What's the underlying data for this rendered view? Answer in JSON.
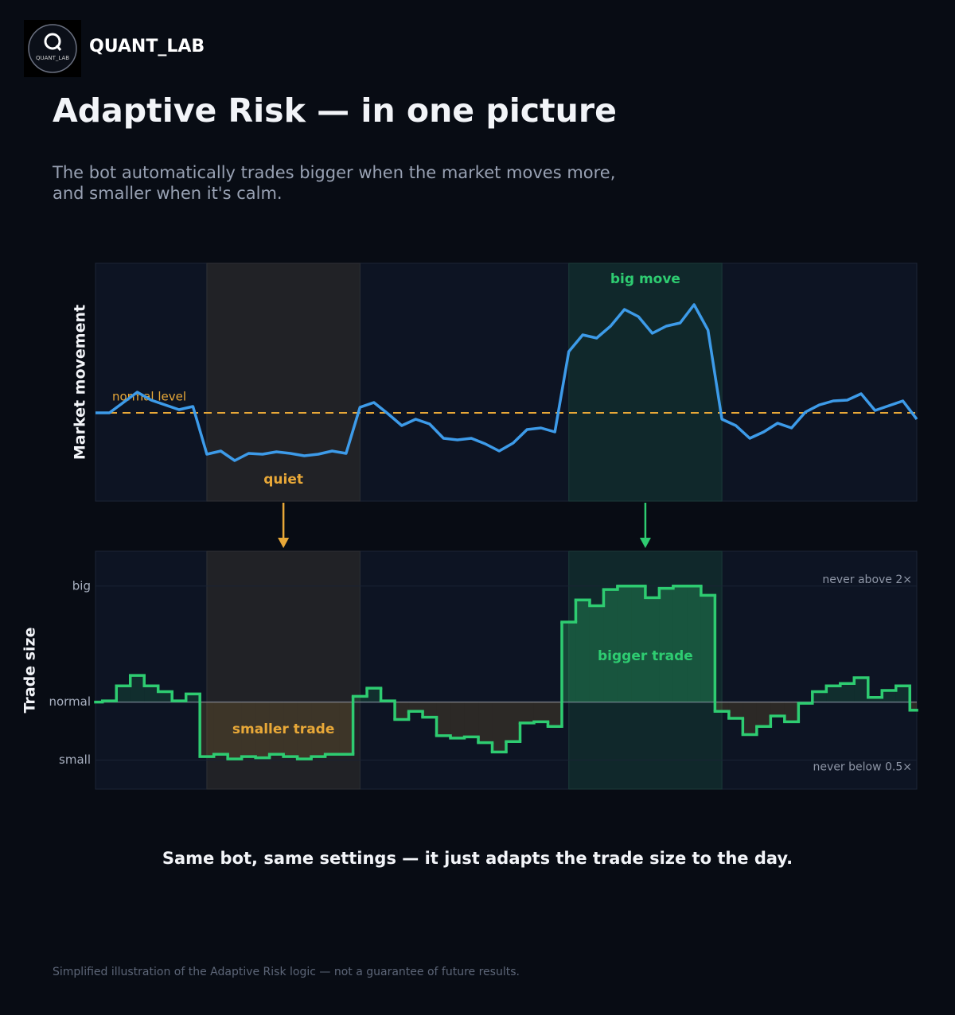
{
  "brand": "QUANT_LAB",
  "logo_label": "QUANT_LAB",
  "title": "Adaptive Risk — in one picture",
  "subtitle": [
    "The bot automatically trades bigger when the market moves more,",
    "and smaller when it's calm."
  ],
  "chart_data": [
    {
      "type": "line",
      "ylabel": "Market movement",
      "color": "#3d9be9",
      "values": [
        111,
        111,
        124,
        137,
        127,
        121,
        115,
        119,
        59,
        63,
        51,
        60,
        59,
        62,
        60,
        57,
        59,
        63,
        60,
        118,
        124,
        110,
        95,
        103,
        97,
        79,
        77,
        79,
        72,
        63,
        73,
        90,
        92,
        87,
        188,
        209,
        205,
        220,
        241,
        232,
        211,
        220,
        224,
        247,
        215,
        103,
        95,
        79,
        87,
        98,
        92,
        112,
        121,
        126,
        127,
        135,
        114,
        120,
        126,
        103
      ],
      "ylim": [
        0,
        299
      ],
      "reference": {
        "value": 111,
        "label": "normal level",
        "color": "#e8a838"
      },
      "regions": [
        {
          "label": "quiet",
          "start": 8,
          "end": 19,
          "color": "#e8a838"
        },
        {
          "label": "big move",
          "start": 34,
          "end": 45,
          "color": "#2ecc71"
        }
      ]
    },
    {
      "type": "step",
      "ylabel": "Trade size",
      "color": "#2ecc71",
      "below_color": "#e8a838",
      "values": [
        1.0,
        1.01,
        1.14,
        1.23,
        1.14,
        1.09,
        1.01,
        1.07,
        0.53,
        0.55,
        0.51,
        0.53,
        0.52,
        0.55,
        0.53,
        0.51,
        0.53,
        0.55,
        0.55,
        1.05,
        1.12,
        1.01,
        0.85,
        0.92,
        0.87,
        0.71,
        0.69,
        0.7,
        0.65,
        0.57,
        0.66,
        0.82,
        0.83,
        0.79,
        1.69,
        1.88,
        1.83,
        1.97,
        2.0,
        2.0,
        1.9,
        1.98,
        2.0,
        2.0,
        1.92,
        0.92,
        0.86,
        0.72,
        0.79,
        0.88,
        0.83,
        0.99,
        1.09,
        1.14,
        1.16,
        1.21,
        1.04,
        1.1,
        1.14,
        0.93
      ],
      "ylim": [
        0.25,
        2.3
      ],
      "baseline": 1,
      "yticks": [
        {
          "value": 2,
          "label": "big"
        },
        {
          "value": 1,
          "label": "normal"
        },
        {
          "value": 0.5,
          "label": "small"
        }
      ],
      "limits": [
        {
          "value": 2,
          "label": "never above 2×"
        },
        {
          "value": 0.5,
          "label": "never below 0.5×"
        }
      ],
      "regions": [
        {
          "label": "smaller trade",
          "start": 8,
          "end": 19,
          "color": "#e8a838"
        },
        {
          "label": "bigger trade",
          "start": 34,
          "end": 45,
          "color": "#2ecc71"
        }
      ]
    }
  ],
  "caption": "Same bot, same settings — it just adapts the trade size to the day.",
  "footnote": "Simplified illustration of the Adaptive Risk logic — not a guarantee of future results."
}
